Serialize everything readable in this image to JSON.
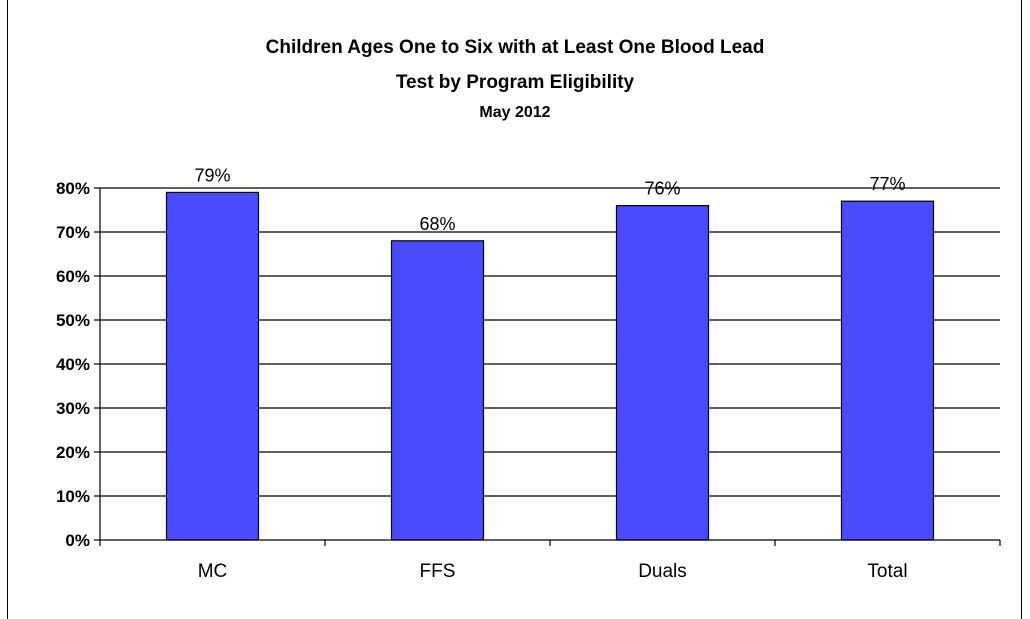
{
  "chart_data": {
    "type": "bar",
    "title_line1": "Children Ages One to Six with at Least One Blood Lead",
    "title_line2": "Test by Program Eligibility",
    "subtitle": "May  2012",
    "categories": [
      "MC",
      "FFS",
      "Duals",
      "Total"
    ],
    "values": [
      79,
      68,
      76,
      77
    ],
    "data_labels": [
      "79%",
      "68%",
      "76%",
      "77%"
    ],
    "ylim": [
      0,
      80
    ],
    "yticks": [
      0,
      10,
      20,
      30,
      40,
      50,
      60,
      70,
      80
    ],
    "ytick_labels": [
      "0%",
      "10%",
      "20%",
      "30%",
      "40%",
      "50%",
      "60%",
      "70%",
      "80%"
    ],
    "grid": true,
    "legend": "none",
    "bar_color": "#4a4aff"
  }
}
